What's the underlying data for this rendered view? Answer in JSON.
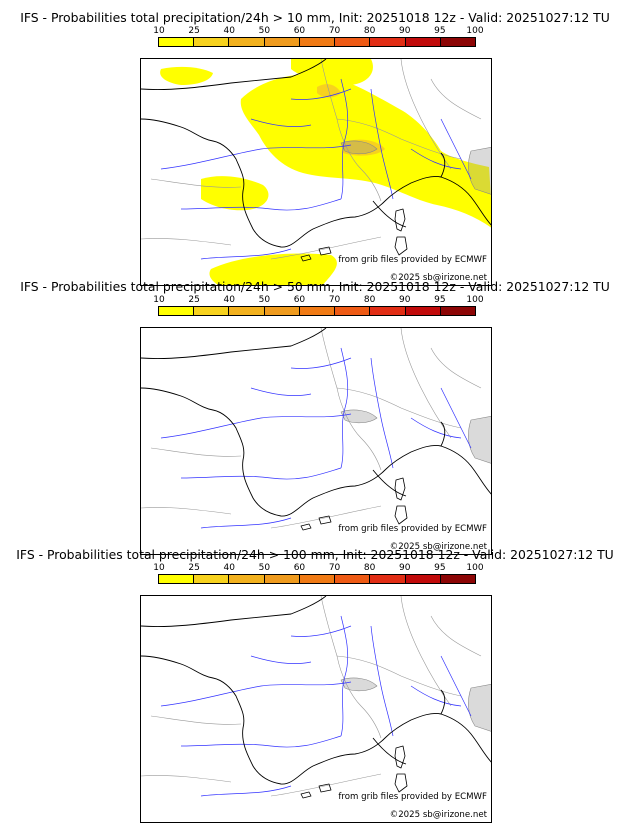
{
  "colors": {
    "scale": [
      "#ffff00",
      "#f7d21e",
      "#f2b11e",
      "#ef9b1e",
      "#f07a14",
      "#ee5a14",
      "#e12d14",
      "#c10a0a",
      "#8c0505",
      "#5a0000"
    ],
    "coast": "#000000",
    "rivers": "#3232ff",
    "borders": "#999999"
  },
  "colorbar": {
    "labels": [
      "10",
      "25",
      "40",
      "50",
      "60",
      "70",
      "80",
      "90",
      "95",
      "100"
    ]
  },
  "credits": {
    "source": "from grib files provided by ECMWF",
    "copyright": "©2025 sb@irizone.net"
  },
  "panels": [
    {
      "title": "IFS - Probabilities total precipitation/24h > 10 mm, Init: 20251018 12z - Valid: 20251027:12 TU",
      "threshold_mm": 10,
      "has_precip_areas": true
    },
    {
      "title": "IFS - Probabilities total precipitation/24h > 50 mm, Init: 20251018 12z - Valid: 20251027:12 TU",
      "threshold_mm": 50,
      "has_precip_areas": false
    },
    {
      "title": "IFS - Probabilities total precipitation/24h > 100 mm, Init: 20251018 12z - Valid: 20251027:12 TU",
      "threshold_mm": 100,
      "has_precip_areas": false
    }
  ]
}
